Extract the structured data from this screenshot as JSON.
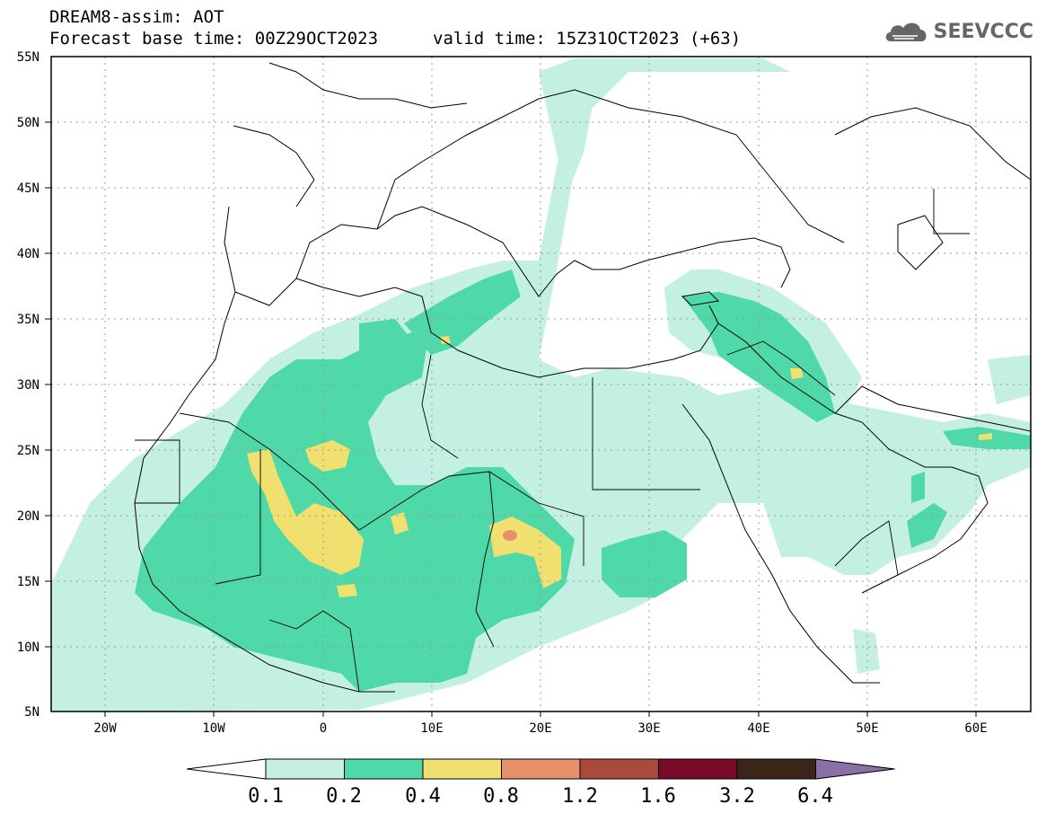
{
  "header": {
    "title": "DREAM8-assim: AOT",
    "base_time": "Forecast base time: 00Z29OCT2023",
    "valid_time": "valid time: 15Z31OCT2023 (+63)"
  },
  "logo": {
    "text": "SEEVCCC",
    "icon": "cloud-icon"
  },
  "map": {
    "lon_range": [
      -25,
      65
    ],
    "lat_range": [
      5,
      55
    ],
    "lat_ticks": [
      "55N",
      "50N",
      "45N",
      "40N",
      "35N",
      "30N",
      "25N",
      "20N",
      "15N",
      "10N",
      "5N"
    ],
    "lon_ticks": [
      "20W",
      "10W",
      "0",
      "10E",
      "20E",
      "30E",
      "40E",
      "50E",
      "60E"
    ]
  },
  "legend": {
    "labels": [
      "0.1",
      "0.2",
      "0.4",
      "0.8",
      "1.2",
      "1.6",
      "3.2",
      "6.4"
    ],
    "colors": [
      "#ffffff",
      "#c4f0e4",
      "#4fd8a8",
      "#f0e070",
      "#e6916a",
      "#a84b3c",
      "#7a0a2a",
      "#3a2618",
      "#8a6fa8"
    ]
  }
}
